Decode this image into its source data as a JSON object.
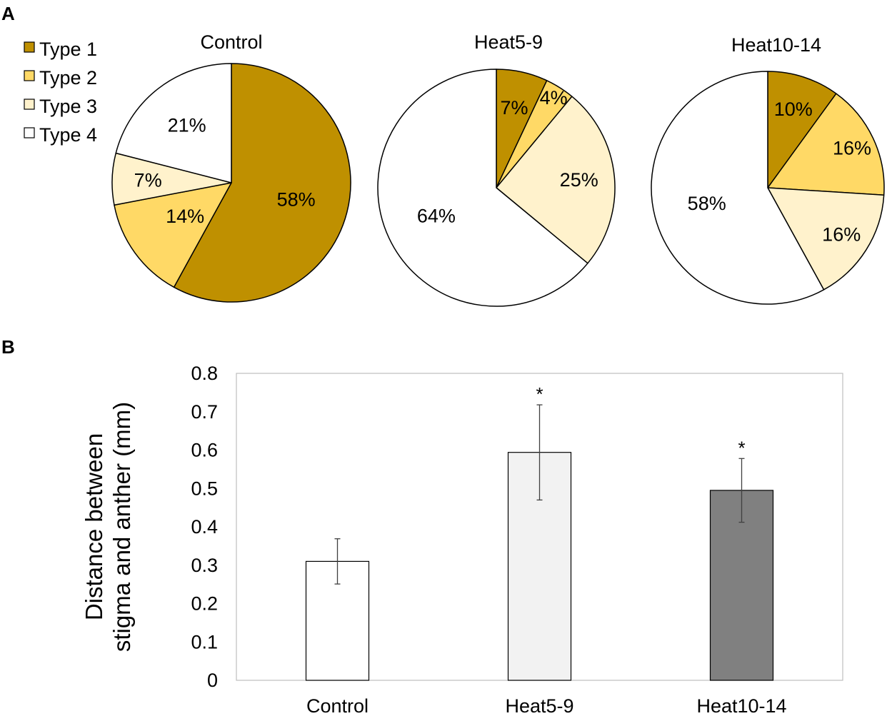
{
  "panel_labels": {
    "a": "A",
    "b": "B"
  },
  "colors": {
    "type1": "#BF9000",
    "type2": "#FFD966",
    "type3": "#FFF2CC",
    "type4": "#FFFFFF",
    "outline": "#000000",
    "bar_control": "#FFFFFF",
    "bar_heat5_9": "#F2F2F2",
    "bar_heat10_14": "#808080"
  },
  "chart_data": [
    {
      "type": "pie",
      "panel": "A",
      "legend": [
        "Type 1",
        "Type 2",
        "Type 3",
        "Type 4"
      ],
      "legend_position": "top-left",
      "pies": [
        {
          "title": "Control",
          "values": [
            58,
            14,
            7,
            21
          ],
          "labels": [
            "58%",
            "14%",
            "7%",
            "21%"
          ]
        },
        {
          "title": "Heat5-9",
          "values": [
            7,
            4,
            25,
            64
          ],
          "labels": [
            "7%",
            "4%",
            "25%",
            "64%"
          ]
        },
        {
          "title": "Heat10-14",
          "values": [
            10,
            16,
            16,
            58
          ],
          "labels": [
            "10%",
            "16%",
            "16%",
            "58%"
          ]
        }
      ]
    },
    {
      "type": "bar",
      "panel": "B",
      "categories": [
        "Control",
        "Heat5-9",
        "Heat10-14"
      ],
      "values": [
        0.31,
        0.594,
        0.495
      ],
      "errors": [
        0.059,
        0.124,
        0.083
      ],
      "significance": [
        "",
        "*",
        "*"
      ],
      "ylabel": [
        "Distance between",
        "stigma and anther (mm)"
      ],
      "xlabel": "",
      "ylim": [
        0,
        0.8
      ],
      "yticks": [
        "0",
        "0.1",
        "0.2",
        "0.3",
        "0.4",
        "0.5",
        "0.6",
        "0.7",
        "0.8"
      ],
      "grid": false
    }
  ]
}
